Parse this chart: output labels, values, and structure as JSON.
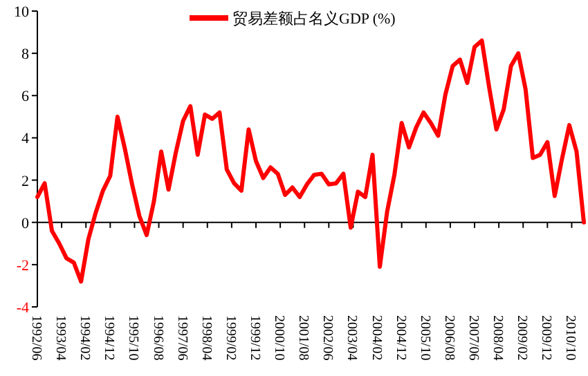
{
  "chart_data": {
    "type": "line",
    "legend": "top",
    "marker": "none",
    "line_style": "solid",
    "xlim": [
      "1992-06",
      "2011-03"
    ],
    "ylim": [
      -4,
      10
    ],
    "yticks": [
      -4,
      -2,
      0,
      2,
      4,
      6,
      8,
      10
    ],
    "xticks": [
      {
        "value": "1992-06",
        "label": "1992/06"
      },
      {
        "value": "1993-04",
        "label": "1993/04"
      },
      {
        "value": "1994-02",
        "label": "1994/02"
      },
      {
        "value": "1994-12",
        "label": "1994/12"
      },
      {
        "value": "1995-10",
        "label": "1995/10"
      },
      {
        "value": "1996-08",
        "label": "1996/08"
      },
      {
        "value": "1997-06",
        "label": "1997/06"
      },
      {
        "value": "1998-04",
        "label": "1998/04"
      },
      {
        "value": "1999-02",
        "label": "1999/02"
      },
      {
        "value": "1999-12",
        "label": "1999/12"
      },
      {
        "value": "2000-10",
        "label": "2000/10"
      },
      {
        "value": "2001-08",
        "label": "2001/08"
      },
      {
        "value": "2002-06",
        "label": "2002/06"
      },
      {
        "value": "2003-04",
        "label": "2003/04"
      },
      {
        "value": "2004-02",
        "label": "2004/02"
      },
      {
        "value": "2004-12",
        "label": "2004/12"
      },
      {
        "value": "2005-10",
        "label": "2005/10"
      },
      {
        "value": "2006-08",
        "label": "2006/08"
      },
      {
        "value": "2007-06",
        "label": "2007/06"
      },
      {
        "value": "2008-04",
        "label": "2008/04"
      },
      {
        "value": "2009-02",
        "label": "2009/02"
      },
      {
        "value": "2009-12",
        "label": "2009/12"
      },
      {
        "value": "2010-10",
        "label": "2010/10"
      }
    ],
    "x": [
      "1992-06",
      "1992-09",
      "1992-12",
      "1993-03",
      "1993-06",
      "1993-09",
      "1993-12",
      "1994-03",
      "1994-06",
      "1994-09",
      "1994-12",
      "1995-03",
      "1995-06",
      "1995-09",
      "1995-12",
      "1996-03",
      "1996-06",
      "1996-09",
      "1996-12",
      "1997-03",
      "1997-06",
      "1997-09",
      "1997-12",
      "1998-03",
      "1998-06",
      "1998-09",
      "1998-12",
      "1999-03",
      "1999-06",
      "1999-09",
      "1999-12",
      "2000-03",
      "2000-06",
      "2000-09",
      "2000-12",
      "2001-03",
      "2001-06",
      "2001-09",
      "2001-12",
      "2002-03",
      "2002-06",
      "2002-09",
      "2002-12",
      "2003-03",
      "2003-06",
      "2003-09",
      "2003-12",
      "2004-03",
      "2004-06",
      "2004-09",
      "2004-12",
      "2005-03",
      "2005-06",
      "2005-09",
      "2005-12",
      "2006-03",
      "2006-06",
      "2006-09",
      "2006-12",
      "2007-03",
      "2007-06",
      "2007-09",
      "2007-12",
      "2008-03",
      "2008-06",
      "2008-09",
      "2008-12",
      "2009-03",
      "2009-06",
      "2009-09",
      "2009-12",
      "2010-03",
      "2010-06",
      "2010-09",
      "2010-12",
      "2011-03"
    ],
    "series": [
      {
        "name": "贸易差额占名义GDP (%)",
        "color": "#ff0000",
        "values": [
          1.2,
          1.85,
          -0.4,
          -1.0,
          -1.7,
          -1.9,
          -2.8,
          -0.8,
          0.45,
          1.5,
          2.2,
          5.0,
          3.5,
          1.8,
          0.3,
          -0.6,
          1.0,
          3.35,
          1.55,
          3.3,
          4.8,
          5.5,
          3.2,
          5.1,
          4.9,
          5.2,
          2.5,
          1.85,
          1.5,
          4.4,
          2.9,
          2.1,
          2.6,
          2.3,
          1.3,
          1.65,
          1.2,
          1.8,
          2.25,
          2.3,
          1.8,
          1.85,
          2.3,
          -0.25,
          1.45,
          1.2,
          3.2,
          -2.1,
          0.5,
          2.25,
          4.7,
          3.55,
          4.5,
          5.2,
          4.7,
          4.1,
          6.05,
          7.4,
          7.7,
          6.6,
          8.3,
          8.6,
          6.4,
          4.4,
          5.35,
          7.4,
          8.0,
          6.3,
          3.05,
          3.2,
          3.8,
          1.25,
          3.0,
          4.6,
          3.35,
          0
        ]
      }
    ]
  }
}
